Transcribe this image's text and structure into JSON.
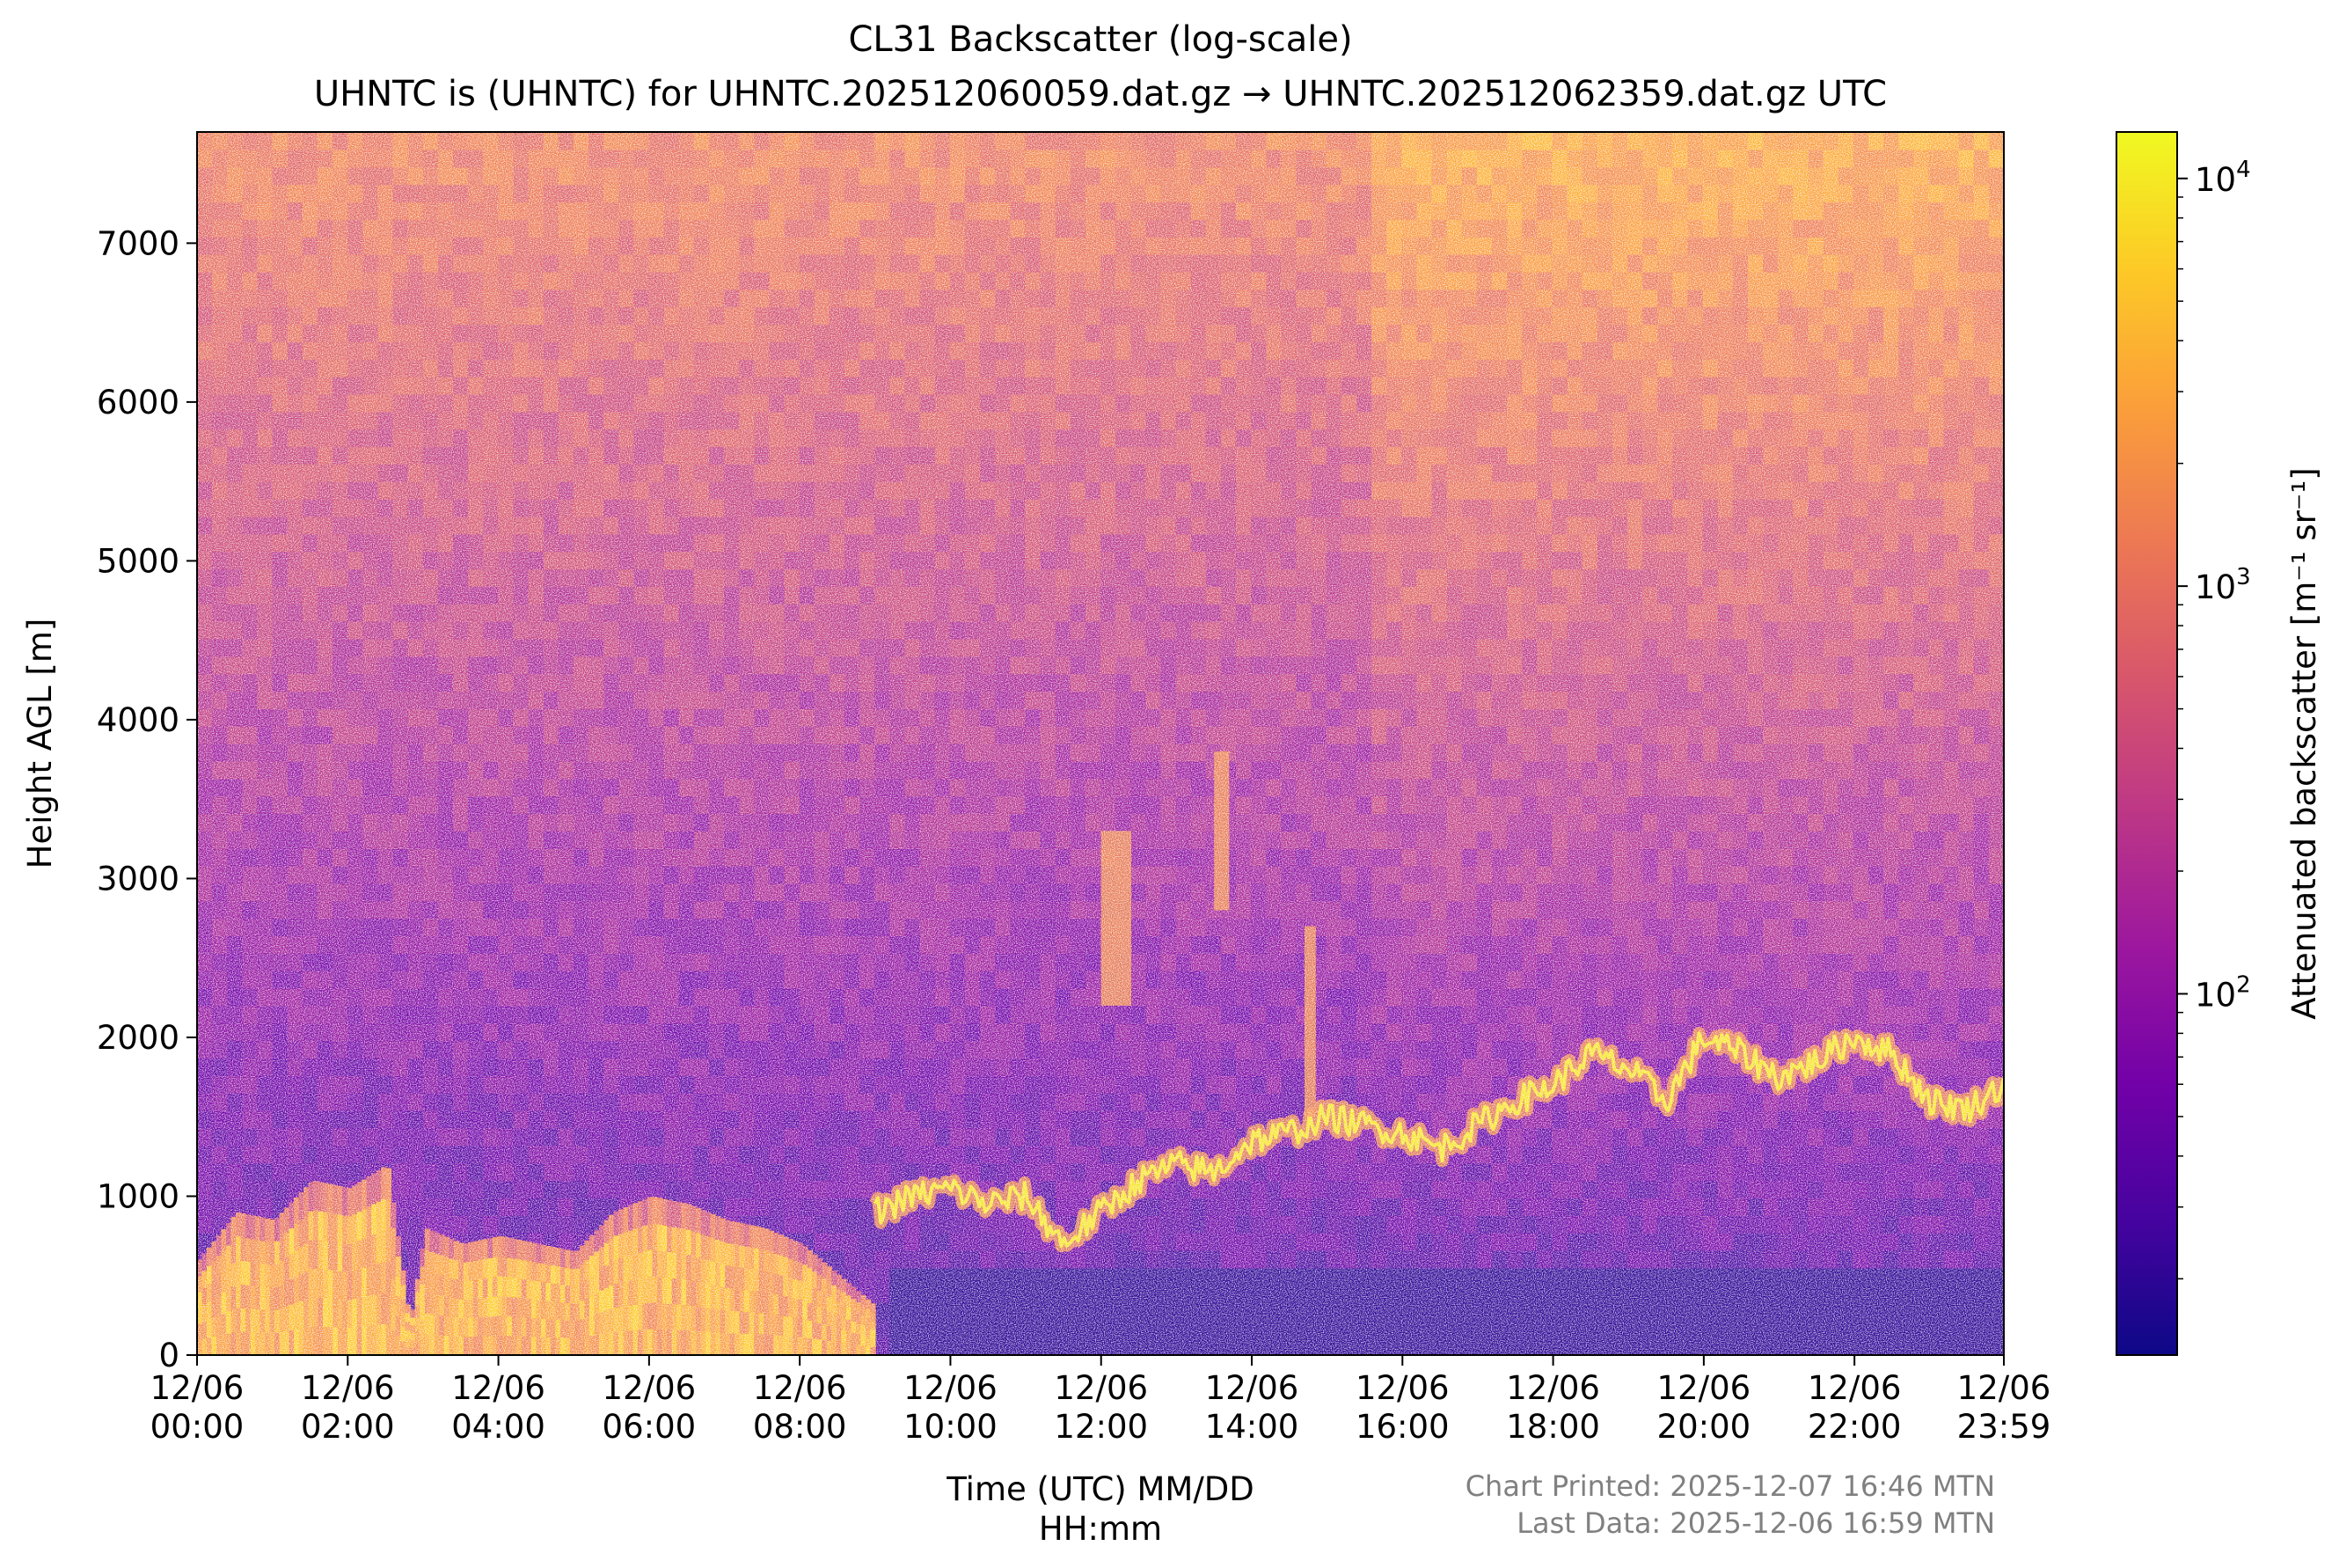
{
  "chart_data": {
    "type": "heatmap",
    "title": "CL31 Backscatter (log-scale)",
    "subtitle": "UHNTC is (UHNTC) for UHNTC.202512060059.dat.gz → UHNTC.202512062359.dat.gz UTC",
    "xlabel_line1": "Time (UTC) MM/DD",
    "xlabel_line2": "HH:mm",
    "ylabel": "Height AGL [m]",
    "colorbar_label": "Attenuated backscatter [m⁻¹ sr⁻¹]",
    "colormap": "plasma",
    "colormap_stops": [
      "#0d0887",
      "#46039f",
      "#7201a8",
      "#9c179e",
      "#bd3786",
      "#d8576b",
      "#ed7953",
      "#fb9f3a",
      "#fdca26",
      "#f0f921"
    ],
    "xlim_hours": [
      0,
      23.983
    ],
    "ylim": [
      0,
      7700
    ],
    "x_ticks": [
      {
        "h": 0,
        "date": "12/06",
        "time": "00:00"
      },
      {
        "h": 2,
        "date": "12/06",
        "time": "02:00"
      },
      {
        "h": 4,
        "date": "12/06",
        "time": "04:00"
      },
      {
        "h": 6,
        "date": "12/06",
        "time": "06:00"
      },
      {
        "h": 8,
        "date": "12/06",
        "time": "08:00"
      },
      {
        "h": 10,
        "date": "12/06",
        "time": "10:00"
      },
      {
        "h": 12,
        "date": "12/06",
        "time": "12:00"
      },
      {
        "h": 14,
        "date": "12/06",
        "time": "14:00"
      },
      {
        "h": 16,
        "date": "12/06",
        "time": "16:00"
      },
      {
        "h": 18,
        "date": "12/06",
        "time": "18:00"
      },
      {
        "h": 20,
        "date": "12/06",
        "time": "20:00"
      },
      {
        "h": 22,
        "date": "12/06",
        "time": "22:00"
      },
      {
        "h": 23.983,
        "date": "12/06",
        "time": "23:59"
      }
    ],
    "y_ticks": [
      0,
      1000,
      2000,
      3000,
      4000,
      5000,
      6000,
      7000
    ],
    "colorbar_range": [
      13,
      13000
    ],
    "colorbar_major_ticks": [
      {
        "value": 100,
        "label": "10",
        "exp": "2"
      },
      {
        "value": 1000,
        "label": "10",
        "exp": "3"
      },
      {
        "value": 10000,
        "label": "10",
        "exp": "4"
      }
    ],
    "colorbar_minor_ticks": [
      20,
      30,
      40,
      50,
      60,
      70,
      80,
      90,
      200,
      300,
      400,
      500,
      600,
      700,
      800,
      900,
      2000,
      3000,
      4000,
      5000,
      6000,
      7000,
      8000,
      9000
    ],
    "boundary_layer_top_m": [
      [
        0,
        600
      ],
      [
        0.5,
        900
      ],
      [
        1,
        850
      ],
      [
        1.5,
        1100
      ],
      [
        2,
        1050
      ],
      [
        2.5,
        1200
      ],
      [
        2.8,
        200
      ],
      [
        3,
        800
      ],
      [
        3.5,
        700
      ],
      [
        4,
        750
      ],
      [
        4.5,
        700
      ],
      [
        5,
        650
      ],
      [
        5.5,
        900
      ],
      [
        6,
        1000
      ],
      [
        6.5,
        950
      ],
      [
        7,
        850
      ],
      [
        7.5,
        800
      ],
      [
        8,
        700
      ],
      [
        8.5,
        500
      ],
      [
        9,
        300
      ]
    ],
    "aerosol_layer_m": [
      [
        9,
        900
      ],
      [
        9.5,
        1000
      ],
      [
        10,
        1050
      ],
      [
        10.5,
        950
      ],
      [
        11,
        1000
      ],
      [
        11.5,
        700
      ],
      [
        12,
        900
      ],
      [
        12.5,
        1100
      ],
      [
        13,
        1200
      ],
      [
        13.5,
        1150
      ],
      [
        14,
        1350
      ],
      [
        14.5,
        1400
      ],
      [
        15,
        1500
      ],
      [
        15.5,
        1450
      ],
      [
        16,
        1400
      ],
      [
        16.5,
        1300
      ],
      [
        17,
        1450
      ],
      [
        17.5,
        1600
      ],
      [
        18,
        1700
      ],
      [
        18.5,
        1900
      ],
      [
        19,
        1800
      ],
      [
        19.5,
        1600
      ],
      [
        20,
        2000
      ],
      [
        20.5,
        1900
      ],
      [
        21,
        1750
      ],
      [
        21.5,
        1850
      ],
      [
        22,
        2000
      ],
      [
        22.5,
        1900
      ],
      [
        23,
        1600
      ],
      [
        23.5,
        1550
      ],
      [
        23.983,
        1700
      ]
    ],
    "cloud_features": [
      {
        "h0": 12.0,
        "h1": 12.4,
        "y0": 2200,
        "y1": 3300
      },
      {
        "h0": 13.5,
        "h1": 13.7,
        "y0": 2800,
        "y1": 3800
      },
      {
        "h0": 14.7,
        "h1": 14.85,
        "y0": 1500,
        "y1": 2700
      }
    ]
  },
  "footer": {
    "printed": "Chart Printed: 2025-12-07 16:46 MTN",
    "last_data": "Last Data: 2025-12-06 16:59 MTN"
  }
}
